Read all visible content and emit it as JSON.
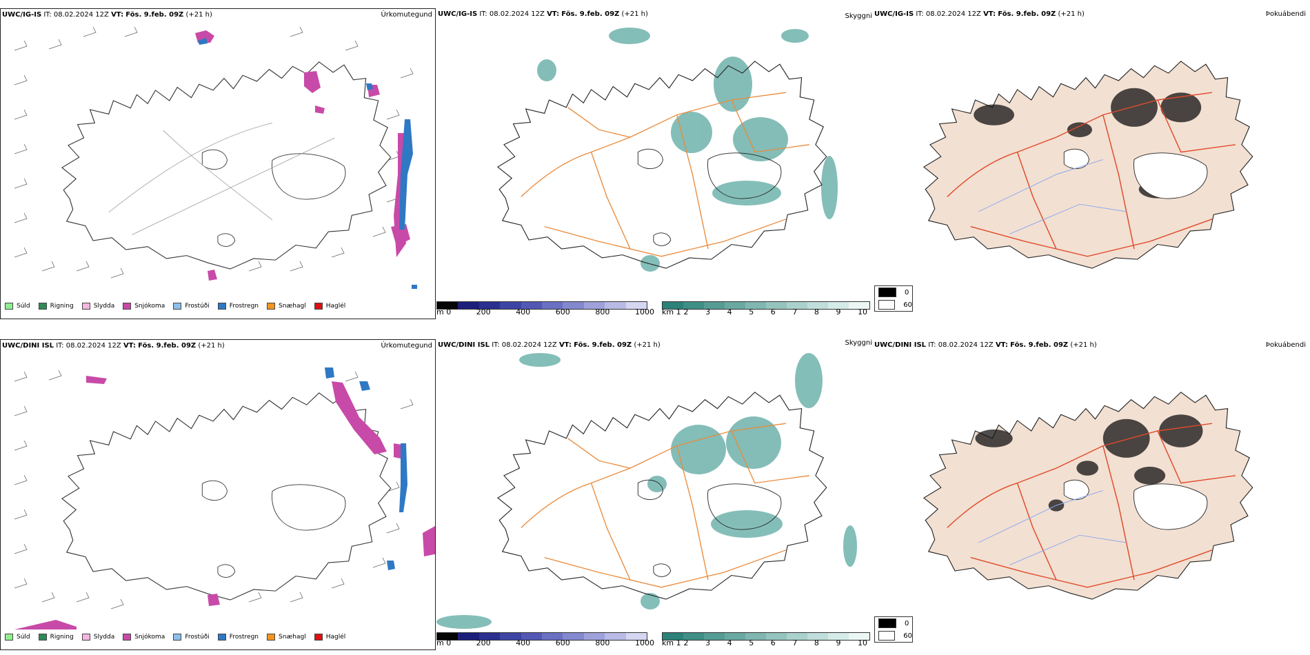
{
  "rows": [
    {
      "model": "UWC/IG-IS",
      "it_label": "IT:",
      "it_value": "08.02.2024 12Z",
      "vt_label": "VT:",
      "vt_value": "Fös. 9.feb. 09Z",
      "lead": "(+21 h)"
    },
    {
      "model": "UWC/DINI ISL",
      "it_label": "IT:",
      "it_value": "08.02.2024 12Z",
      "vt_label": "VT:",
      "vt_value": "Fös. 9.feb. 09Z",
      "lead": "(+21 h)"
    }
  ],
  "panels": {
    "precip_title": "Úrkomutegund",
    "cloud_title": "Skyggni",
    "fog_title": "Þokuábendi"
  },
  "precip_legend": [
    {
      "label": "Súld",
      "color": "#90ee90"
    },
    {
      "label": "Rigning",
      "color": "#2e8b57"
    },
    {
      "label": "Slydda",
      "color": "#f4b6e0"
    },
    {
      "label": "Snjókoma",
      "color": "#c84aa8"
    },
    {
      "label": "Frostúði",
      "color": "#8ec0ee"
    },
    {
      "label": "Frostregn",
      "color": "#2f78c4"
    },
    {
      "label": "Snæhagl",
      "color": "#f2961e"
    },
    {
      "label": "Haglél",
      "color": "#e01010"
    }
  ],
  "height_bar": {
    "unit": "m",
    "ticks": [
      "0",
      "200",
      "400",
      "600",
      "800",
      "1000"
    ],
    "colors": [
      "#050505",
      "#1c1f7a",
      "#2a2f90",
      "#3d45a4",
      "#5258b4",
      "#6a70c2",
      "#8488ce",
      "#9ea1da",
      "#b9bbe6",
      "#d5d6f1"
    ]
  },
  "vis_bar": {
    "unit": "km",
    "ticks": [
      "1",
      "2",
      "3",
      "4",
      "5",
      "6",
      "7",
      "8",
      "9",
      "10"
    ],
    "colors": [
      "#2b8278",
      "#3f8f86",
      "#559c94",
      "#6aa9a2",
      "#80b7b0",
      "#95c4be",
      "#abd1cc",
      "#c0dedb",
      "#d5ebe8",
      "#ecf6f5"
    ]
  },
  "fog_legend": {
    "high": "0",
    "low": "60",
    "high_color": "#000000",
    "low_color": "#ffffff"
  },
  "colors": {
    "land_fill": "#f2e0d2",
    "road_orange": "#ea8a3a",
    "road_red": "#e04a2a",
    "river_blue": "#8da8f0",
    "snow_magenta": "#c84aa8",
    "frost_blue": "#2f78c4",
    "cloud_teal": "#5ba8a0"
  }
}
